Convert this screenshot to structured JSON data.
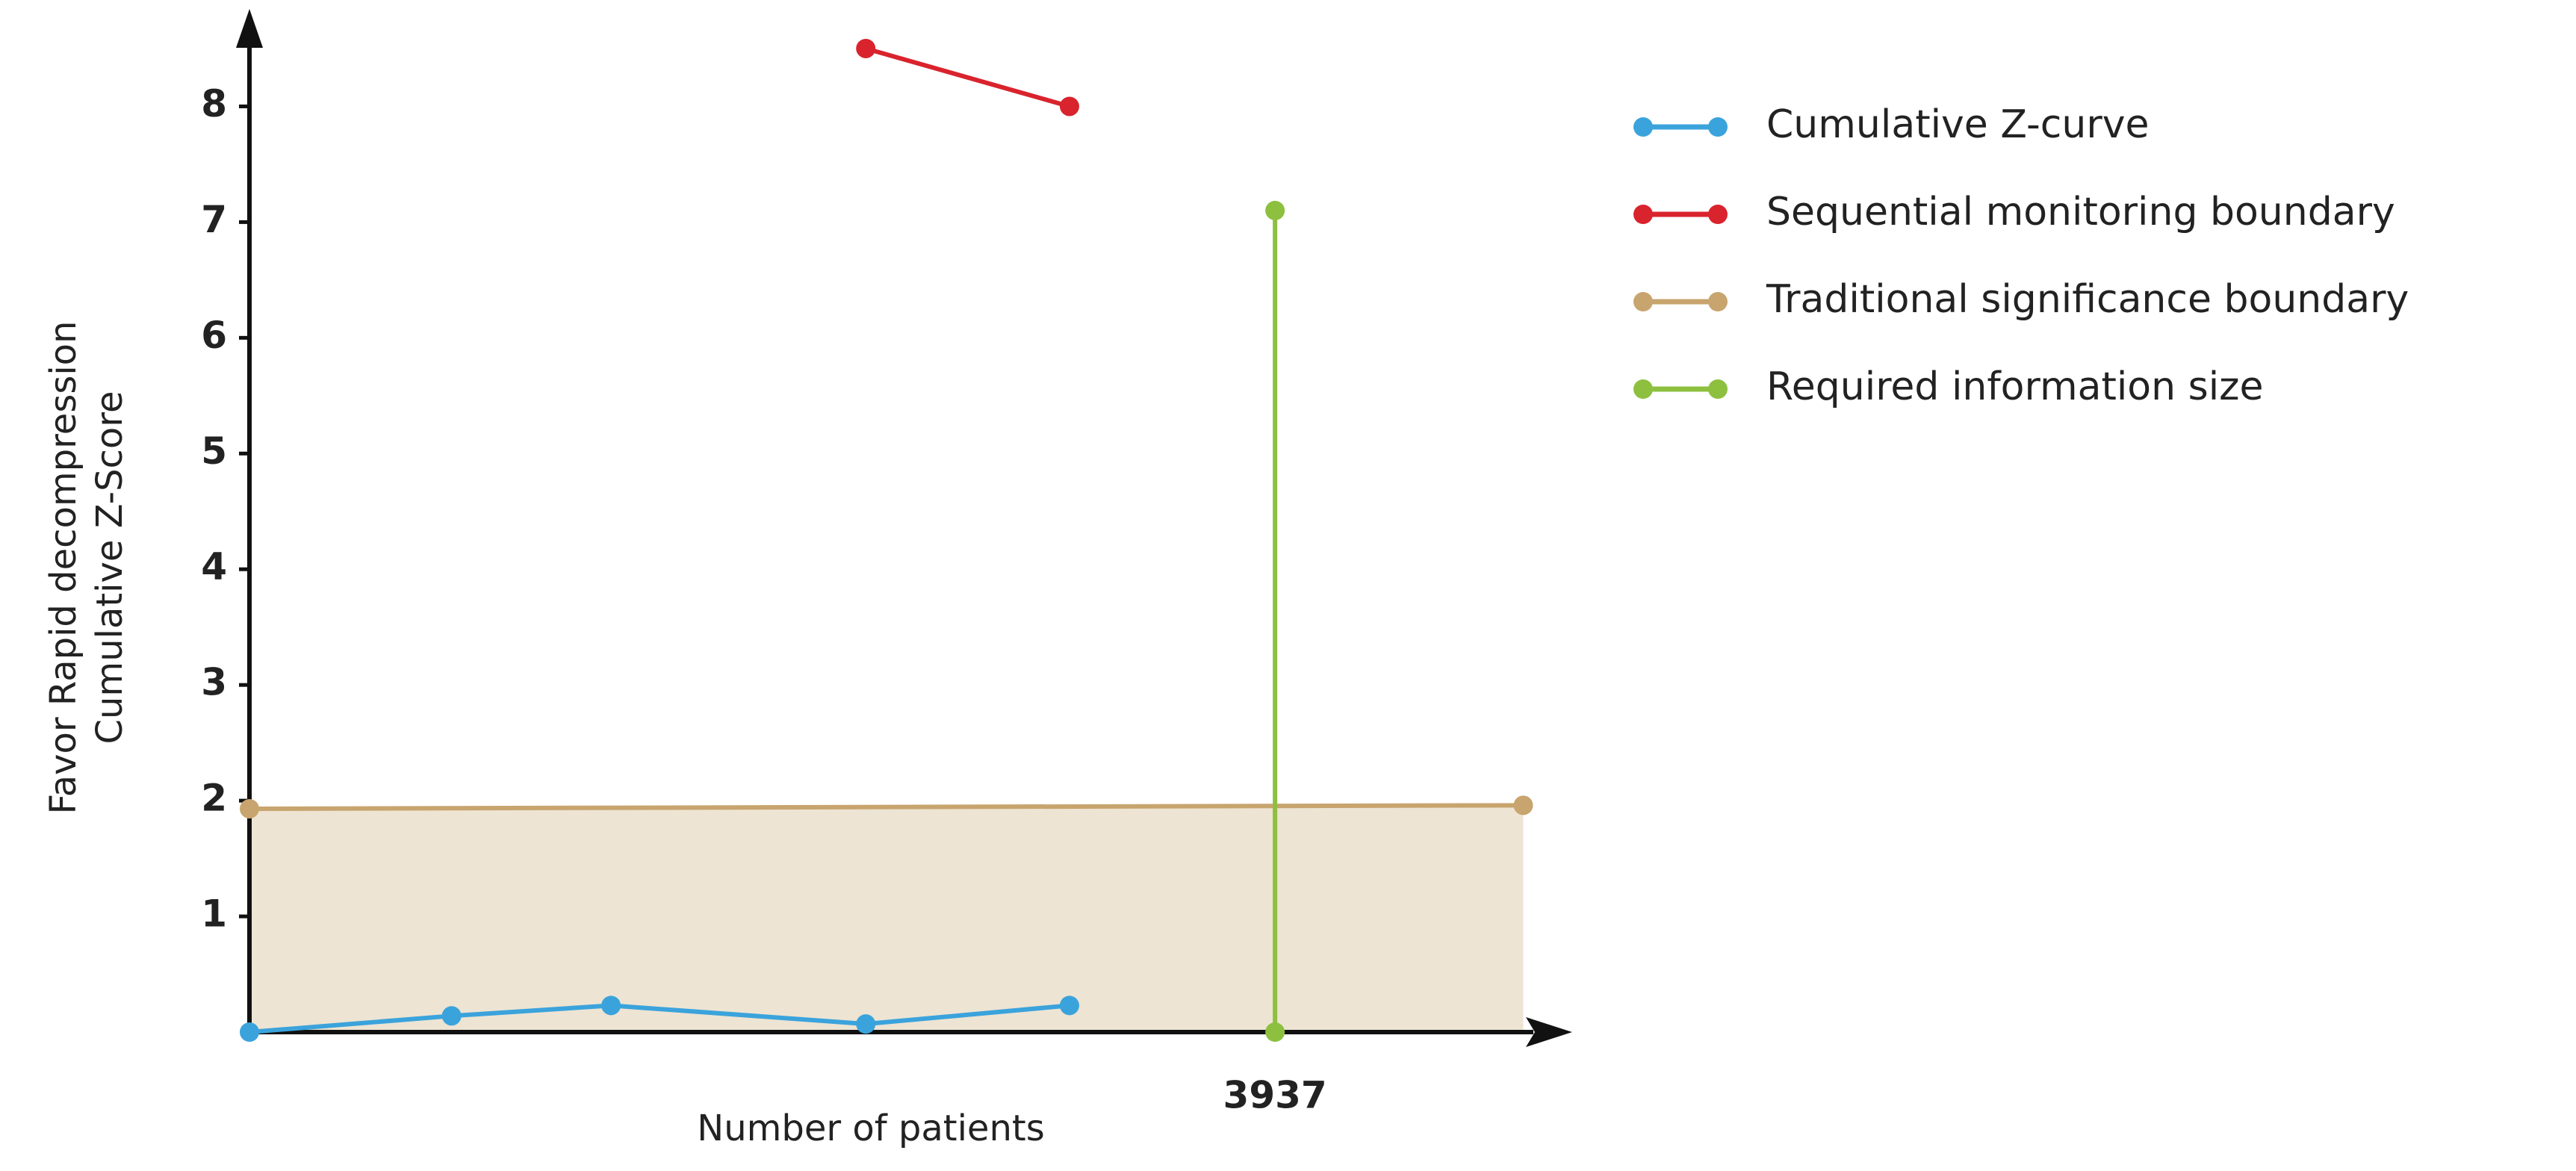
{
  "chart_data": {
    "type": "line",
    "xlabel": "Number of patients",
    "ylabel": [
      "Favor Rapid decompression",
      "Cumulative Z-Score"
    ],
    "xlim": [
      0,
      4900
    ],
    "ylim": [
      0,
      8.7
    ],
    "xticks": [
      3937
    ],
    "yticks": [
      1,
      2,
      3,
      4,
      5,
      6,
      7,
      8
    ],
    "legend": "right",
    "series": [
      {
        "name": "Cumulative Z-curve",
        "color": "#3ba3dc",
        "x": [
          0,
          776,
          1388,
          2366,
          3148
        ],
        "values": [
          0,
          0.14,
          0.23,
          0.07,
          0.23
        ]
      },
      {
        "name": "Sequential monitoring boundary",
        "color": "#d9232d",
        "x": [
          2366,
          3148
        ],
        "values": [
          8.5,
          8.0
        ]
      },
      {
        "name": "Traditional significance boundary",
        "color": "#c8a46e",
        "x": [
          0,
          4890
        ],
        "values": [
          1.93,
          1.96
        ],
        "shade": "#ede4d3"
      },
      {
        "name": "Required information size",
        "color": "#8dc03f",
        "x": [
          3937,
          3937
        ],
        "values": [
          0,
          7.1
        ]
      }
    ]
  }
}
